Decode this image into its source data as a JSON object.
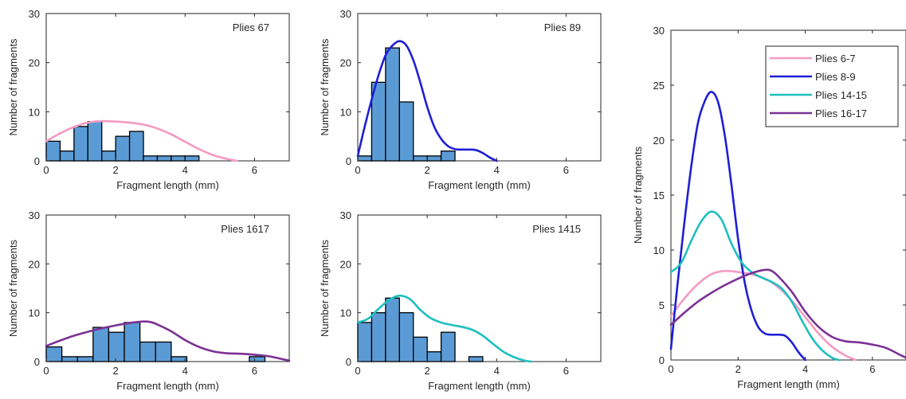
{
  "chart_data": [
    {
      "type": "bar",
      "title": "Plies 67",
      "xlabel": "Fragment length (mm)",
      "ylabel": "Number of fragments",
      "xlim": [
        0,
        7
      ],
      "ylim": [
        0,
        30
      ],
      "xticks": [
        "0",
        "2",
        "4",
        "6"
      ],
      "yticks": [
        "0",
        "10",
        "20",
        "30"
      ],
      "bin_width": 0.4,
      "bins": [
        {
          "x0": 0.0,
          "count": 4
        },
        {
          "x0": 0.4,
          "count": 2
        },
        {
          "x0": 0.8,
          "count": 7
        },
        {
          "x0": 1.2,
          "count": 8
        },
        {
          "x0": 1.6,
          "count": 2
        },
        {
          "x0": 2.0,
          "count": 5
        },
        {
          "x0": 2.4,
          "count": 6
        },
        {
          "x0": 2.8,
          "count": 1
        },
        {
          "x0": 3.2,
          "count": 1
        },
        {
          "x0": 3.6,
          "count": 1
        },
        {
          "x0": 4.0,
          "count": 1
        }
      ],
      "curve": {
        "color": "#f49ac2",
        "x": [
          0,
          0.4,
          0.8,
          1.2,
          1.6,
          2.0,
          2.4,
          2.8,
          3.2,
          3.6,
          4.0,
          4.4,
          4.8,
          5.2,
          5.5
        ],
        "y": [
          4.0,
          5.6,
          6.9,
          7.8,
          8.1,
          8.0,
          7.8,
          7.4,
          6.6,
          5.4,
          3.9,
          2.4,
          1.2,
          0.4,
          0.0
        ]
      }
    },
    {
      "type": "bar",
      "title": "Plies 89",
      "xlabel": "Fragment length (mm)",
      "ylabel": "Number of fragments",
      "xlim": [
        0,
        7
      ],
      "ylim": [
        0,
        30
      ],
      "xticks": [
        "0",
        "2",
        "4",
        "6"
      ],
      "yticks": [
        "0",
        "10",
        "20",
        "30"
      ],
      "bin_width": 0.4,
      "bins": [
        {
          "x0": 0.0,
          "count": 1
        },
        {
          "x0": 0.4,
          "count": 16
        },
        {
          "x0": 0.8,
          "count": 23
        },
        {
          "x0": 1.2,
          "count": 12
        },
        {
          "x0": 1.6,
          "count": 1
        },
        {
          "x0": 2.0,
          "count": 1
        },
        {
          "x0": 2.4,
          "count": 2
        }
      ],
      "curve": {
        "color": "#1f1fd6",
        "x": [
          0,
          0.2,
          0.4,
          0.6,
          0.8,
          1.0,
          1.2,
          1.4,
          1.6,
          1.8,
          2.0,
          2.2,
          2.4,
          2.6,
          2.8,
          3.0,
          3.2,
          3.4,
          3.6,
          3.8,
          4.0
        ],
        "y": [
          1.0,
          7.0,
          12.5,
          17.5,
          21.5,
          23.5,
          24.4,
          23.5,
          20.5,
          16.0,
          11.0,
          7.0,
          4.5,
          3.0,
          2.4,
          2.3,
          2.3,
          2.2,
          1.6,
          0.7,
          0.0
        ]
      }
    },
    {
      "type": "bar",
      "title": "Plies 1617",
      "xlabel": "Fragment length (mm)",
      "ylabel": "Number of fragments",
      "xlim": [
        0,
        7
      ],
      "ylim": [
        0,
        30
      ],
      "xticks": [
        "0",
        "2",
        "4",
        "6"
      ],
      "yticks": [
        "0",
        "10",
        "20",
        "30"
      ],
      "bin_width": 0.45,
      "bins": [
        {
          "x0": 0.0,
          "count": 3
        },
        {
          "x0": 0.45,
          "count": 1
        },
        {
          "x0": 0.9,
          "count": 1
        },
        {
          "x0": 1.35,
          "count": 7
        },
        {
          "x0": 1.8,
          "count": 6
        },
        {
          "x0": 2.25,
          "count": 8
        },
        {
          "x0": 2.7,
          "count": 4
        },
        {
          "x0": 3.15,
          "count": 4
        },
        {
          "x0": 3.6,
          "count": 1
        },
        {
          "x0": 4.05,
          "count": 0
        },
        {
          "x0": 4.5,
          "count": 0
        },
        {
          "x0": 4.95,
          "count": 0
        },
        {
          "x0": 5.4,
          "count": 0
        },
        {
          "x0": 5.85,
          "count": 1
        }
      ],
      "curve": {
        "color": "#7b3294",
        "x": [
          0,
          0.4,
          0.8,
          1.2,
          1.6,
          2.0,
          2.4,
          2.8,
          3.0,
          3.2,
          3.6,
          4.0,
          4.4,
          4.8,
          5.2,
          5.6,
          6.0,
          6.4,
          6.8,
          7.0
        ],
        "y": [
          3.2,
          4.3,
          5.3,
          6.1,
          6.8,
          7.4,
          7.9,
          8.2,
          8.1,
          7.6,
          6.2,
          4.4,
          3.0,
          2.1,
          1.7,
          1.6,
          1.4,
          1.1,
          0.5,
          0.2
        ]
      }
    },
    {
      "type": "bar",
      "title": "Plies 1415",
      "xlabel": "Fragment length (mm)",
      "ylabel": "Number of fragments",
      "xlim": [
        0,
        7
      ],
      "ylim": [
        0,
        30
      ],
      "xticks": [
        "0",
        "2",
        "4",
        "6"
      ],
      "yticks": [
        "0",
        "10",
        "20",
        "30"
      ],
      "bin_width": 0.4,
      "bins": [
        {
          "x0": 0.0,
          "count": 8
        },
        {
          "x0": 0.4,
          "count": 10
        },
        {
          "x0": 0.8,
          "count": 13
        },
        {
          "x0": 1.2,
          "count": 10
        },
        {
          "x0": 1.6,
          "count": 5
        },
        {
          "x0": 2.0,
          "count": 2
        },
        {
          "x0": 2.4,
          "count": 6
        },
        {
          "x0": 2.8,
          "count": 0
        },
        {
          "x0": 3.2,
          "count": 1
        }
      ],
      "curve": {
        "color": "#1fbfbf",
        "x": [
          0,
          0.3,
          0.6,
          0.9,
          1.2,
          1.5,
          1.8,
          2.1,
          2.4,
          2.7,
          3.0,
          3.3,
          3.6,
          3.9,
          4.2,
          4.5,
          4.8,
          5.0
        ],
        "y": [
          8.0,
          8.8,
          10.8,
          12.6,
          13.5,
          12.8,
          10.6,
          8.9,
          8.0,
          7.5,
          7.1,
          6.5,
          5.3,
          3.6,
          2.0,
          0.9,
          0.2,
          0.0
        ]
      }
    },
    {
      "type": "line",
      "xlabel": "Fragment length (mm)",
      "ylabel": "Number of fragments",
      "xlim": [
        0,
        7
      ],
      "ylim": [
        0,
        30
      ],
      "xticks": [
        "0",
        "2",
        "4",
        "6"
      ],
      "yticks": [
        "0",
        "5",
        "10",
        "15",
        "20",
        "25",
        "30"
      ],
      "legend_position": "top-right",
      "series": [
        {
          "name": "Plies 6-7",
          "color": "#f49ac2",
          "x": [
            0,
            0.4,
            0.8,
            1.2,
            1.6,
            2.0,
            2.4,
            2.8,
            3.2,
            3.6,
            4.0,
            4.4,
            4.8,
            5.2,
            5.5
          ],
          "y": [
            4.0,
            5.6,
            6.9,
            7.8,
            8.1,
            8.0,
            7.8,
            7.4,
            6.6,
            5.4,
            3.9,
            2.4,
            1.2,
            0.4,
            0.0
          ]
        },
        {
          "name": "Plies 8-9",
          "color": "#1f1fd6",
          "x": [
            0,
            0.2,
            0.4,
            0.6,
            0.8,
            1.0,
            1.2,
            1.4,
            1.6,
            1.8,
            2.0,
            2.2,
            2.4,
            2.6,
            2.8,
            3.0,
            3.2,
            3.4,
            3.6,
            3.8,
            4.0
          ],
          "y": [
            1.0,
            7.0,
            12.5,
            17.5,
            21.5,
            23.5,
            24.4,
            23.5,
            20.5,
            16.0,
            11.0,
            7.0,
            4.5,
            3.0,
            2.4,
            2.3,
            2.3,
            2.2,
            1.6,
            0.7,
            0.0
          ]
        },
        {
          "name": "Plies 14-15",
          "color": "#1fbfbf",
          "x": [
            0,
            0.3,
            0.6,
            0.9,
            1.2,
            1.5,
            1.8,
            2.1,
            2.4,
            2.7,
            3.0,
            3.3,
            3.6,
            3.9,
            4.2,
            4.5,
            4.8,
            5.0
          ],
          "y": [
            8.0,
            8.8,
            10.8,
            12.6,
            13.5,
            12.8,
            10.6,
            8.9,
            8.0,
            7.5,
            7.1,
            6.5,
            5.3,
            3.6,
            2.0,
            0.9,
            0.2,
            0.0
          ]
        },
        {
          "name": "Plies 16-17",
          "color": "#7b3294",
          "x": [
            0,
            0.4,
            0.8,
            1.2,
            1.6,
            2.0,
            2.4,
            2.8,
            3.0,
            3.2,
            3.6,
            4.0,
            4.4,
            4.8,
            5.2,
            5.6,
            6.0,
            6.4,
            6.8,
            7.0
          ],
          "y": [
            3.2,
            4.3,
            5.3,
            6.1,
            6.8,
            7.4,
            7.9,
            8.2,
            8.1,
            7.6,
            6.2,
            4.4,
            3.0,
            2.1,
            1.7,
            1.6,
            1.4,
            1.1,
            0.5,
            0.2
          ]
        }
      ]
    }
  ],
  "style": {
    "bar_fill": "#5b9bd5",
    "bar_edge": "#000000",
    "axis_color": "#262626"
  }
}
